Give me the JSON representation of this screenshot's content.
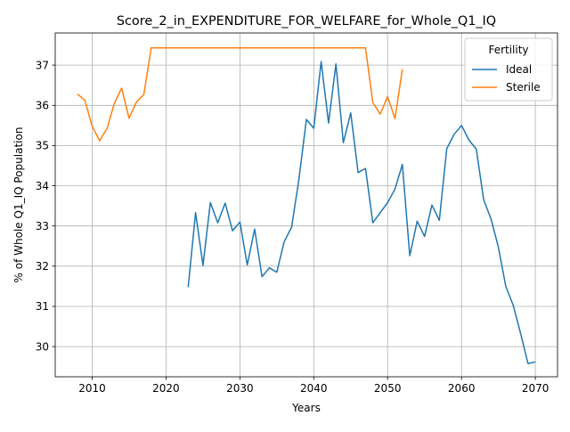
{
  "chart_data": {
    "type": "line",
    "title": "Score_2_in_EXPENDITURE_FOR_WELFARE_for_Whole_Q1_IQ",
    "xlabel": "Years",
    "ylabel": "% of Whole Q1_IQ Population",
    "xlim": [
      2005,
      2073
    ],
    "ylim": [
      29.25,
      37.8
    ],
    "xticks": [
      2010,
      2020,
      2030,
      2040,
      2050,
      2060,
      2070
    ],
    "yticks": [
      30,
      31,
      32,
      33,
      34,
      35,
      36,
      37
    ],
    "grid": true,
    "legend": {
      "title": "Fertility",
      "placement": "top-right"
    },
    "series": [
      {
        "name": "Ideal",
        "color": "#1f77b4",
        "points": [
          [
            2023,
            31.48
          ],
          [
            2024,
            33.33
          ],
          [
            2025,
            32.02
          ],
          [
            2026,
            33.58
          ],
          [
            2027,
            33.08
          ],
          [
            2028,
            33.57
          ],
          [
            2029,
            32.88
          ],
          [
            2030,
            33.1
          ],
          [
            2031,
            32.03
          ],
          [
            2032,
            32.92
          ],
          [
            2033,
            31.74
          ],
          [
            2034,
            31.96
          ],
          [
            2035,
            31.85
          ],
          [
            2036,
            32.61
          ],
          [
            2037,
            32.97
          ],
          [
            2038,
            34.17
          ],
          [
            2039,
            35.65
          ],
          [
            2040,
            35.43
          ],
          [
            2041,
            37.09
          ],
          [
            2042,
            35.56
          ],
          [
            2043,
            37.03
          ],
          [
            2044,
            35.07
          ],
          [
            2045,
            35.81
          ],
          [
            2046,
            34.33
          ],
          [
            2047,
            34.43
          ],
          [
            2048,
            33.08
          ],
          [
            2049,
            33.33
          ],
          [
            2050,
            33.58
          ],
          [
            2051,
            33.92
          ],
          [
            2052,
            34.53
          ],
          [
            2053,
            32.26
          ],
          [
            2054,
            33.12
          ],
          [
            2055,
            32.74
          ],
          [
            2056,
            33.52
          ],
          [
            2057,
            33.14
          ],
          [
            2058,
            34.92
          ],
          [
            2059,
            35.28
          ],
          [
            2060,
            35.5
          ],
          [
            2061,
            35.14
          ],
          [
            2062,
            34.91
          ],
          [
            2063,
            33.65
          ],
          [
            2064,
            33.17
          ],
          [
            2065,
            32.47
          ],
          [
            2066,
            31.5
          ],
          [
            2067,
            31.03
          ],
          [
            2068,
            30.33
          ],
          [
            2069,
            29.58
          ],
          [
            2070,
            29.62
          ]
        ]
      },
      {
        "name": "Sterile",
        "color": "#ff7f0e",
        "points": [
          [
            2008,
            36.28
          ],
          [
            2009,
            36.13
          ],
          [
            2010,
            35.48
          ],
          [
            2011,
            35.12
          ],
          [
            2012,
            35.42
          ],
          [
            2013,
            36.05
          ],
          [
            2014,
            36.43
          ],
          [
            2015,
            35.68
          ],
          [
            2016,
            36.08
          ],
          [
            2017,
            36.27
          ],
          [
            2018,
            37.43
          ],
          [
            2019,
            37.43
          ],
          [
            2020,
            37.43
          ],
          [
            2025,
            37.43
          ],
          [
            2030,
            37.43
          ],
          [
            2035,
            37.43
          ],
          [
            2040,
            37.43
          ],
          [
            2045,
            37.43
          ],
          [
            2047,
            37.43
          ],
          [
            2048,
            36.07
          ],
          [
            2049,
            35.78
          ],
          [
            2050,
            36.22
          ],
          [
            2051,
            35.67
          ],
          [
            2052,
            36.9
          ]
        ]
      }
    ]
  }
}
